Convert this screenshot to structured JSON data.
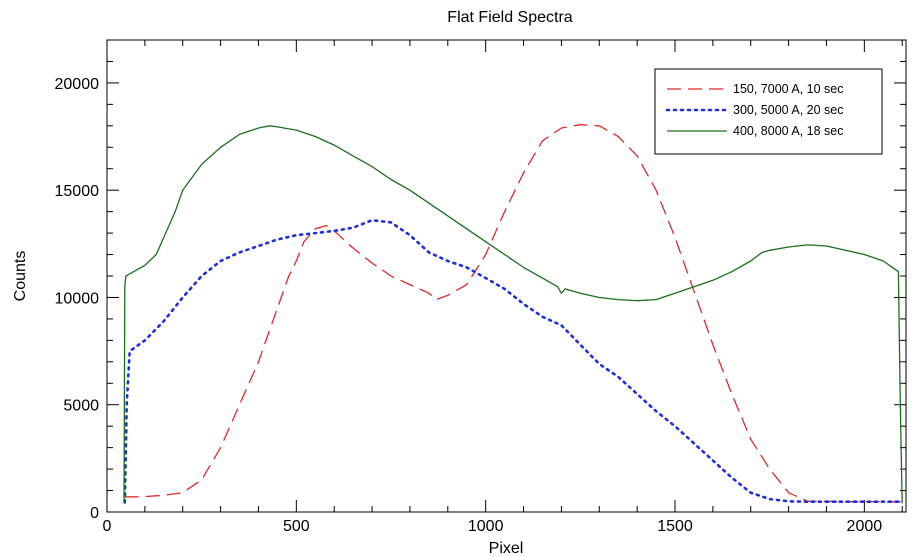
{
  "chart_data": {
    "type": "line",
    "title": "Flat Field Spectra",
    "xlabel": "Pixel",
    "ylabel": "Counts",
    "xlim": [
      0,
      2110
    ],
    "ylim": [
      0,
      22000
    ],
    "x_ticks": [
      0,
      500,
      1000,
      1500,
      2000
    ],
    "y_ticks": [
      0,
      5000,
      10000,
      15000,
      20000
    ],
    "x_tick_labels": [
      "0",
      "500",
      "1000",
      "1500",
      "2000"
    ],
    "y_tick_labels": [
      "0",
      "5000",
      "10000",
      "15000",
      "20000"
    ],
    "grid": false,
    "legend_position": "top-right",
    "series": [
      {
        "name": "150, 7000 A, 10 sec",
        "color": "#e0282a",
        "style": "dashed",
        "x": [
          47,
          100,
          150,
          200,
          250,
          300,
          350,
          380,
          400,
          420,
          450,
          480,
          500,
          520,
          550,
          580,
          600,
          650,
          700,
          750,
          800,
          850,
          870,
          900,
          950,
          1000,
          1050,
          1100,
          1150,
          1200,
          1250,
          1300,
          1350,
          1400,
          1450,
          1500,
          1550,
          1600,
          1650,
          1700,
          1750,
          1800,
          1850,
          1900,
          1950,
          2000,
          2050,
          2100
        ],
        "y": [
          700,
          720,
          780,
          900,
          1500,
          3000,
          5000,
          6200,
          7000,
          8000,
          9500,
          11000,
          11700,
          12600,
          13200,
          13350,
          13100,
          12300,
          11600,
          11000,
          10600,
          10200,
          9900,
          10100,
          10600,
          12000,
          14000,
          15800,
          17300,
          17900,
          18050,
          18000,
          17500,
          16600,
          15000,
          12800,
          10300,
          7800,
          5500,
          3400,
          2000,
          900,
          500,
          500,
          480,
          480,
          480,
          480
        ]
      },
      {
        "name": "300, 5000 A, 20 sec",
        "color": "#1f2fe0",
        "style": "dotted",
        "x": [
          47,
          52,
          60,
          100,
          150,
          200,
          250,
          300,
          350,
          400,
          450,
          500,
          550,
          600,
          650,
          700,
          750,
          800,
          850,
          900,
          950,
          1000,
          1050,
          1100,
          1150,
          1200,
          1250,
          1300,
          1350,
          1400,
          1450,
          1500,
          1550,
          1600,
          1650,
          1700,
          1750,
          1800,
          1850,
          1900,
          1950,
          2000,
          2050,
          2100
        ],
        "y": [
          450,
          5000,
          7500,
          8000,
          8900,
          10000,
          11000,
          11700,
          12100,
          12400,
          12700,
          12900,
          13000,
          13100,
          13250,
          13600,
          13500,
          12900,
          12100,
          11700,
          11400,
          10900,
          10400,
          9700,
          9100,
          8700,
          7800,
          6900,
          6300,
          5500,
          4700,
          4000,
          3200,
          2400,
          1600,
          900,
          600,
          500,
          480,
          480,
          480,
          480,
          480,
          480
        ]
      },
      {
        "name": "400, 8000 A, 18 sec",
        "color": "#1c6e1c",
        "style": "solid",
        "x": [
          45,
          47,
          50,
          80,
          100,
          130,
          150,
          180,
          200,
          250,
          300,
          350,
          400,
          430,
          450,
          500,
          550,
          600,
          650,
          700,
          750,
          800,
          850,
          900,
          950,
          1000,
          1050,
          1100,
          1150,
          1190,
          1200,
          1210,
          1250,
          1300,
          1350,
          1400,
          1450,
          1500,
          1550,
          1600,
          1650,
          1700,
          1730,
          1750,
          1800,
          1850,
          1900,
          1950,
          2000,
          2050,
          2090,
          2095,
          2100
        ],
        "y": [
          400,
          10500,
          11000,
          11300,
          11500,
          12000,
          12800,
          14000,
          15000,
          16200,
          17000,
          17600,
          17900,
          18000,
          17950,
          17800,
          17500,
          17100,
          16600,
          16100,
          15500,
          15000,
          14400,
          13800,
          13200,
          12600,
          12000,
          11400,
          10900,
          10500,
          10200,
          10400,
          10200,
          10000,
          9900,
          9850,
          9900,
          10200,
          10500,
          10800,
          11200,
          11700,
          12100,
          12200,
          12350,
          12450,
          12400,
          12200,
          12000,
          11700,
          11200,
          5000,
          400
        ]
      }
    ]
  }
}
